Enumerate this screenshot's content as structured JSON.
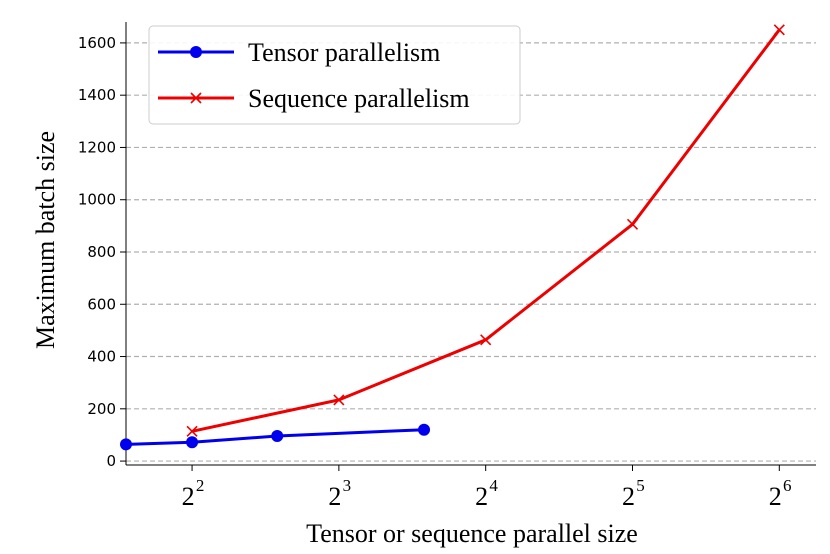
{
  "chart_data": {
    "type": "line",
    "title": "",
    "xlabel": "Tensor or sequence parallel size",
    "ylabel": "Maximum batch size",
    "x_scale": "log2",
    "xlim": [
      1.55,
      6.25
    ],
    "ylim": [
      -15,
      1680
    ],
    "x_ticks": [
      {
        "value": 2,
        "base": "2",
        "exp": "2"
      },
      {
        "value": 3,
        "base": "2",
        "exp": "3"
      },
      {
        "value": 4,
        "base": "2",
        "exp": "4"
      },
      {
        "value": 5,
        "base": "2",
        "exp": "5"
      },
      {
        "value": 6,
        "base": "2",
        "exp": "6"
      }
    ],
    "y_ticks": [
      0,
      200,
      400,
      600,
      800,
      1000,
      1200,
      1400,
      1600
    ],
    "grid": "y-dashed",
    "legend_position": "top-left",
    "series": [
      {
        "name": "Tensor parallelism",
        "color": "#0000ee",
        "marker": "circle",
        "x_log2": [
          1.55,
          2.0,
          2.58,
          3.58
        ],
        "y": [
          64,
          72,
          96,
          120
        ]
      },
      {
        "name": "Sequence parallelism",
        "color": "#ee0000",
        "marker": "x",
        "x_log2": [
          2,
          3,
          4,
          5,
          6
        ],
        "y": [
          114,
          234,
          464,
          906,
          1650
        ]
      }
    ]
  }
}
